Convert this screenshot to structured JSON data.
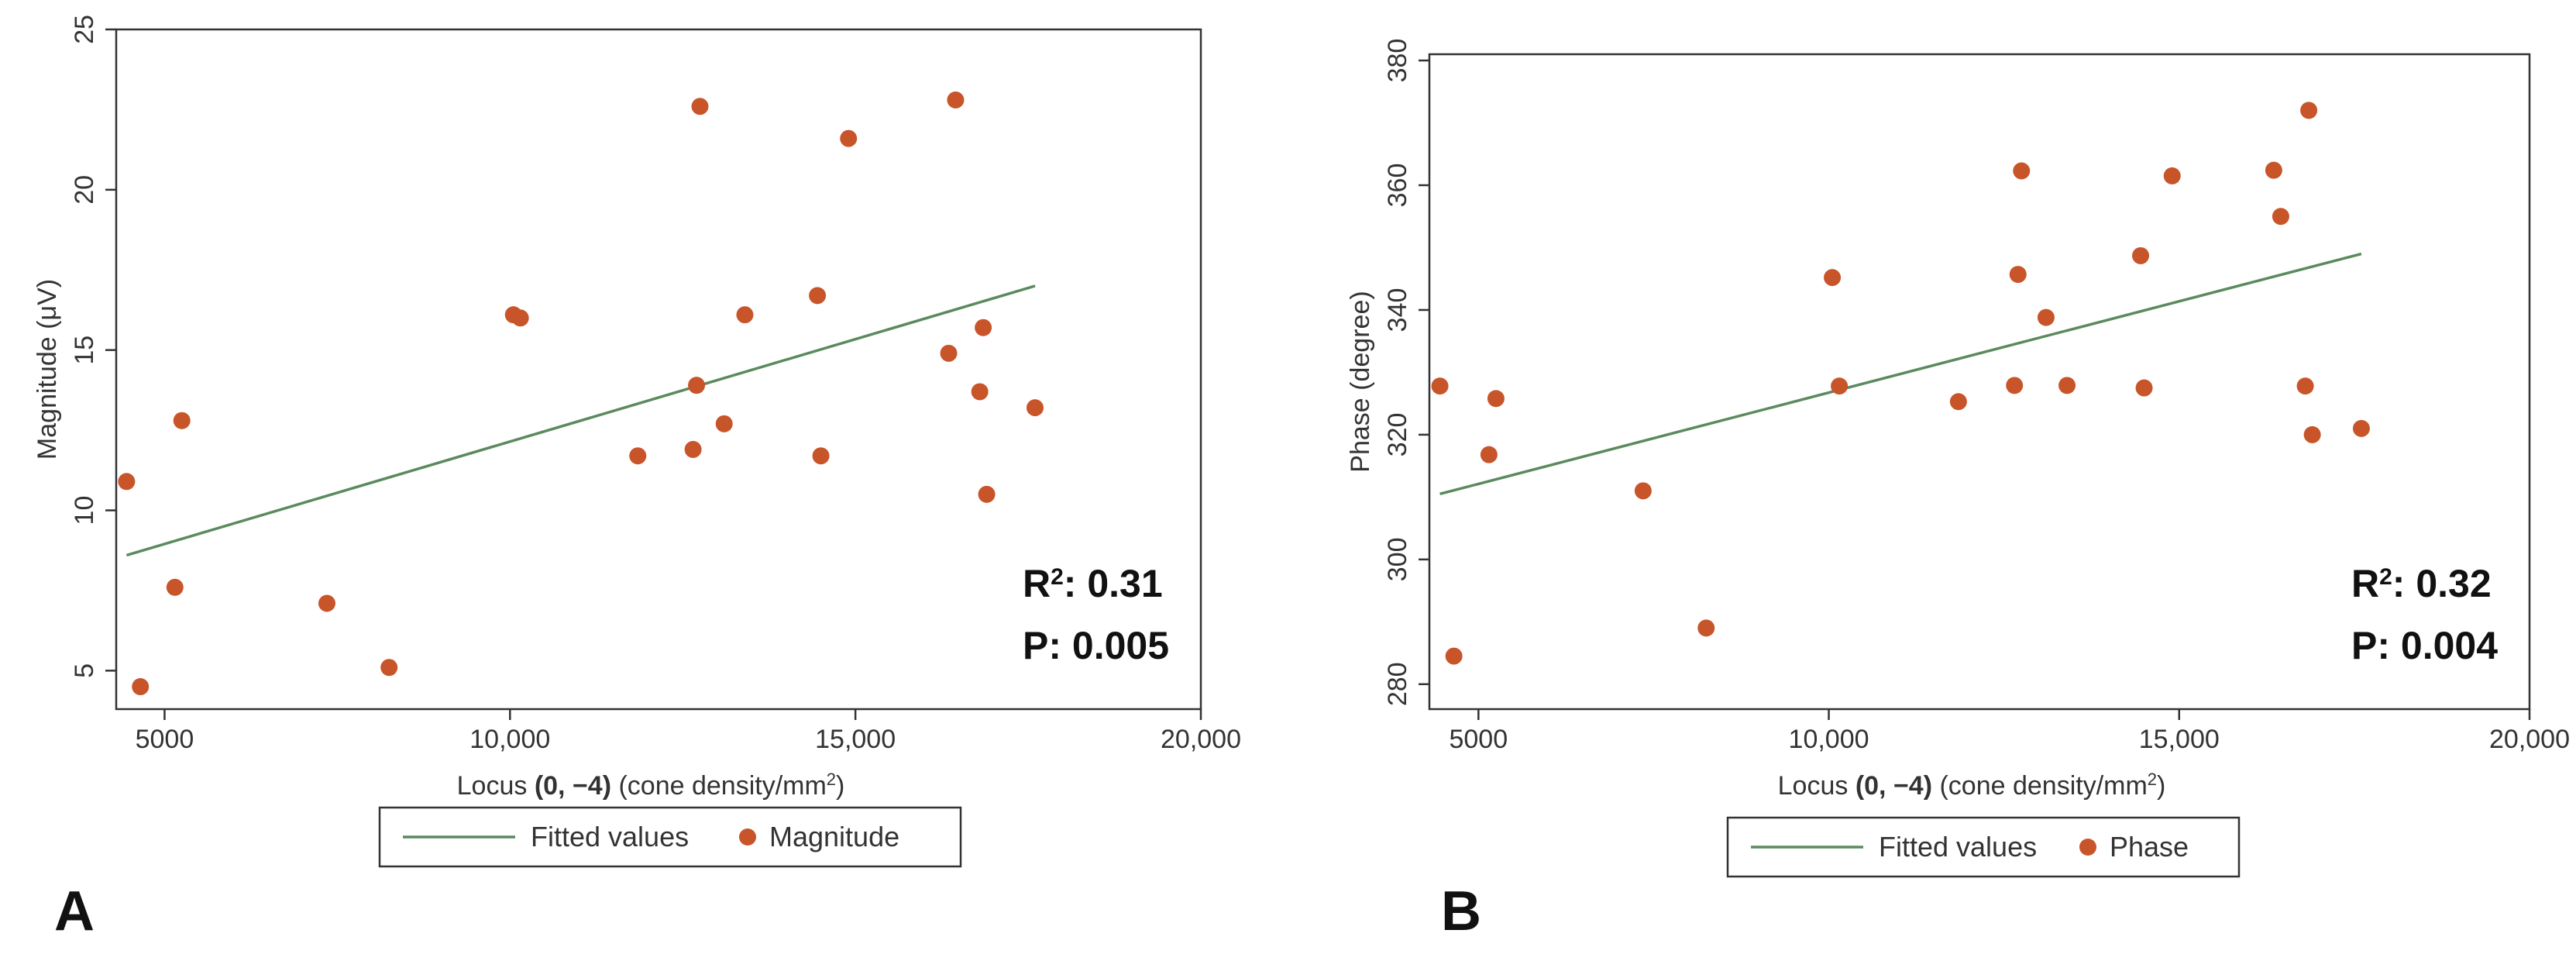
{
  "colors": {
    "fit_line": "#5b8a5e",
    "points": "#c8552a",
    "axis": "#333333"
  },
  "chart_data": [
    {
      "panel_label": "A",
      "type": "scatter",
      "xlabel_prefix": "Locus ",
      "xlabel_locus": "(0, −4)",
      "xlabel_suffix": "(cone density/mm",
      "xlabel_exp": "2",
      "xlabel_close": ")",
      "ylabel": "Magnitude (μV)",
      "xlim": [
        4300,
        20000
      ],
      "ylim": [
        3.8,
        25
      ],
      "xticks": [
        5000,
        10000,
        15000,
        20000
      ],
      "xtick_labels": [
        "5000",
        "10,000",
        "15,000",
        "20,000"
      ],
      "yticks": [
        5,
        10,
        15,
        20,
        25
      ],
      "ytick_labels": [
        "5",
        "10",
        "15",
        "20",
        "25"
      ],
      "fit": {
        "x": [
          4450,
          17600
        ],
        "y": [
          8.6,
          17.0
        ]
      },
      "points": [
        {
          "x": 4450,
          "y": 10.9
        },
        {
          "x": 4650,
          "y": 4.5
        },
        {
          "x": 5150,
          "y": 7.6
        },
        {
          "x": 5250,
          "y": 12.8
        },
        {
          "x": 7350,
          "y": 7.1
        },
        {
          "x": 8250,
          "y": 5.1
        },
        {
          "x": 10050,
          "y": 16.1
        },
        {
          "x": 10150,
          "y": 16.0
        },
        {
          "x": 11850,
          "y": 11.7
        },
        {
          "x": 12650,
          "y": 11.9
        },
        {
          "x": 12700,
          "y": 13.9
        },
        {
          "x": 12750,
          "y": 22.6
        },
        {
          "x": 13100,
          "y": 12.7
        },
        {
          "x": 13400,
          "y": 16.1
        },
        {
          "x": 14450,
          "y": 16.7
        },
        {
          "x": 14500,
          "y": 11.7
        },
        {
          "x": 14900,
          "y": 21.6
        },
        {
          "x": 16350,
          "y": 14.9
        },
        {
          "x": 16450,
          "y": 22.8
        },
        {
          "x": 16800,
          "y": 13.7
        },
        {
          "x": 16850,
          "y": 15.7
        },
        {
          "x": 16900,
          "y": 10.5
        },
        {
          "x": 17600,
          "y": 13.2
        }
      ],
      "stats": {
        "r2_label": "R",
        "r2_exp": "2",
        "r2_value": ": 0.31",
        "p_label": "P:",
        "p_value": "0.005"
      },
      "legend": {
        "fit_label": "Fitted values",
        "points_label": "Magnitude"
      }
    },
    {
      "panel_label": "B",
      "type": "scatter",
      "xlabel_prefix": "Locus ",
      "xlabel_locus": "(0, −4)",
      "xlabel_suffix": "(cone density/mm",
      "xlabel_exp": "2",
      "xlabel_close": ")",
      "ylabel": "Phase (degree)",
      "xlim": [
        4300,
        20000
      ],
      "ylim": [
        276,
        381
      ],
      "xticks": [
        5000,
        10000,
        15000,
        20000
      ],
      "xtick_labels": [
        "5000",
        "10,000",
        "15,000",
        "20,000"
      ],
      "yticks": [
        280,
        300,
        320,
        340,
        360,
        380
      ],
      "ytick_labels": [
        "280",
        "300",
        "320",
        "340",
        "360",
        "380"
      ],
      "fit": {
        "x": [
          4450,
          17600
        ],
        "y": [
          310.5,
          349.0
        ]
      },
      "points": [
        {
          "x": 4450,
          "y": 327.8
        },
        {
          "x": 4650,
          "y": 284.5
        },
        {
          "x": 5150,
          "y": 316.8
        },
        {
          "x": 5250,
          "y": 325.8
        },
        {
          "x": 7350,
          "y": 311.0
        },
        {
          "x": 8250,
          "y": 289.0
        },
        {
          "x": 10050,
          "y": 345.2
        },
        {
          "x": 10150,
          "y": 327.8
        },
        {
          "x": 11850,
          "y": 325.3
        },
        {
          "x": 12650,
          "y": 327.9
        },
        {
          "x": 12700,
          "y": 345.7
        },
        {
          "x": 12750,
          "y": 362.3
        },
        {
          "x": 13100,
          "y": 338.8
        },
        {
          "x": 13400,
          "y": 327.9
        },
        {
          "x": 14450,
          "y": 348.7
        },
        {
          "x": 14500,
          "y": 327.5
        },
        {
          "x": 14900,
          "y": 361.5
        },
        {
          "x": 16350,
          "y": 362.4
        },
        {
          "x": 16450,
          "y": 355.0
        },
        {
          "x": 16800,
          "y": 327.8
        },
        {
          "x": 16850,
          "y": 372.0
        },
        {
          "x": 16900,
          "y": 320.0
        },
        {
          "x": 17600,
          "y": 321.0
        }
      ],
      "stats": {
        "r2_label": "R",
        "r2_exp": "2",
        "r2_value": ": 0.32",
        "p_label": "P:",
        "p_value": "0.004"
      },
      "legend": {
        "fit_label": "Fitted values",
        "points_label": "Phase"
      }
    }
  ]
}
